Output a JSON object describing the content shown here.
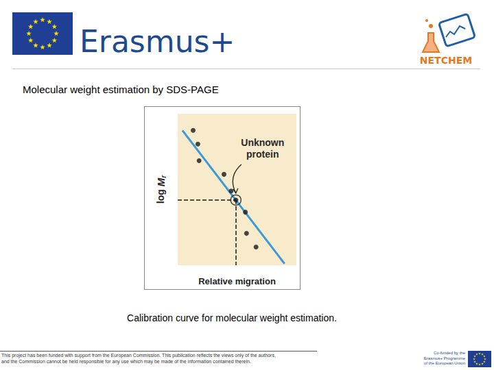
{
  "slide": {
    "logo_text": "Erasmus+",
    "partner_logo_text": "NETCHEM",
    "heading": "Molecular weight estimation by SDS-PAGE",
    "caption": "Calibration curve for molecular weight estimation.",
    "disclaimer": [
      "This project has been funded with support from the European Commission. This publication reflects the views only of the authors,",
      "and the Commission cannot be held responsible for any use which may be made of the information contained therein."
    ],
    "cofunded": [
      "Co-funded by the",
      "Erasmus+ Programme",
      "of the European Union"
    ]
  },
  "chart_data": {
    "type": "scatter",
    "xlabel": "Relative migration",
    "ylabel": "log Mr",
    "xlim": [
      0,
      10
    ],
    "ylim": [
      0,
      10
    ],
    "xticks": [],
    "yticks": [],
    "tick_labels": false,
    "grid": false,
    "series": [
      {
        "type": "scatter",
        "color": "#1a1a1a",
        "marker": "circle",
        "x": [
          1.3,
          1.7,
          1.8,
          3.9,
          4.5,
          5.7,
          5.8,
          6.6
        ],
        "values": [
          8.9,
          8.0,
          6.9,
          6.0,
          4.9,
          3.5,
          2.1,
          1.2
        ]
      },
      {
        "type": "line",
        "color": "#3a9ad9",
        "line_style": "solid",
        "x": [
          0.4,
          9.0
        ],
        "values": [
          8.9,
          0.1
        ]
      },
      {
        "type": "scatter",
        "color": "#1a1a1a",
        "marker": "circled",
        "x": [
          4.9
        ],
        "values": [
          4.3
        ]
      }
    ],
    "annotations": [
      {
        "text": "Unknown protein",
        "x": 4.9,
        "y": 4.3,
        "line_style": "dashed"
      }
    ]
  }
}
